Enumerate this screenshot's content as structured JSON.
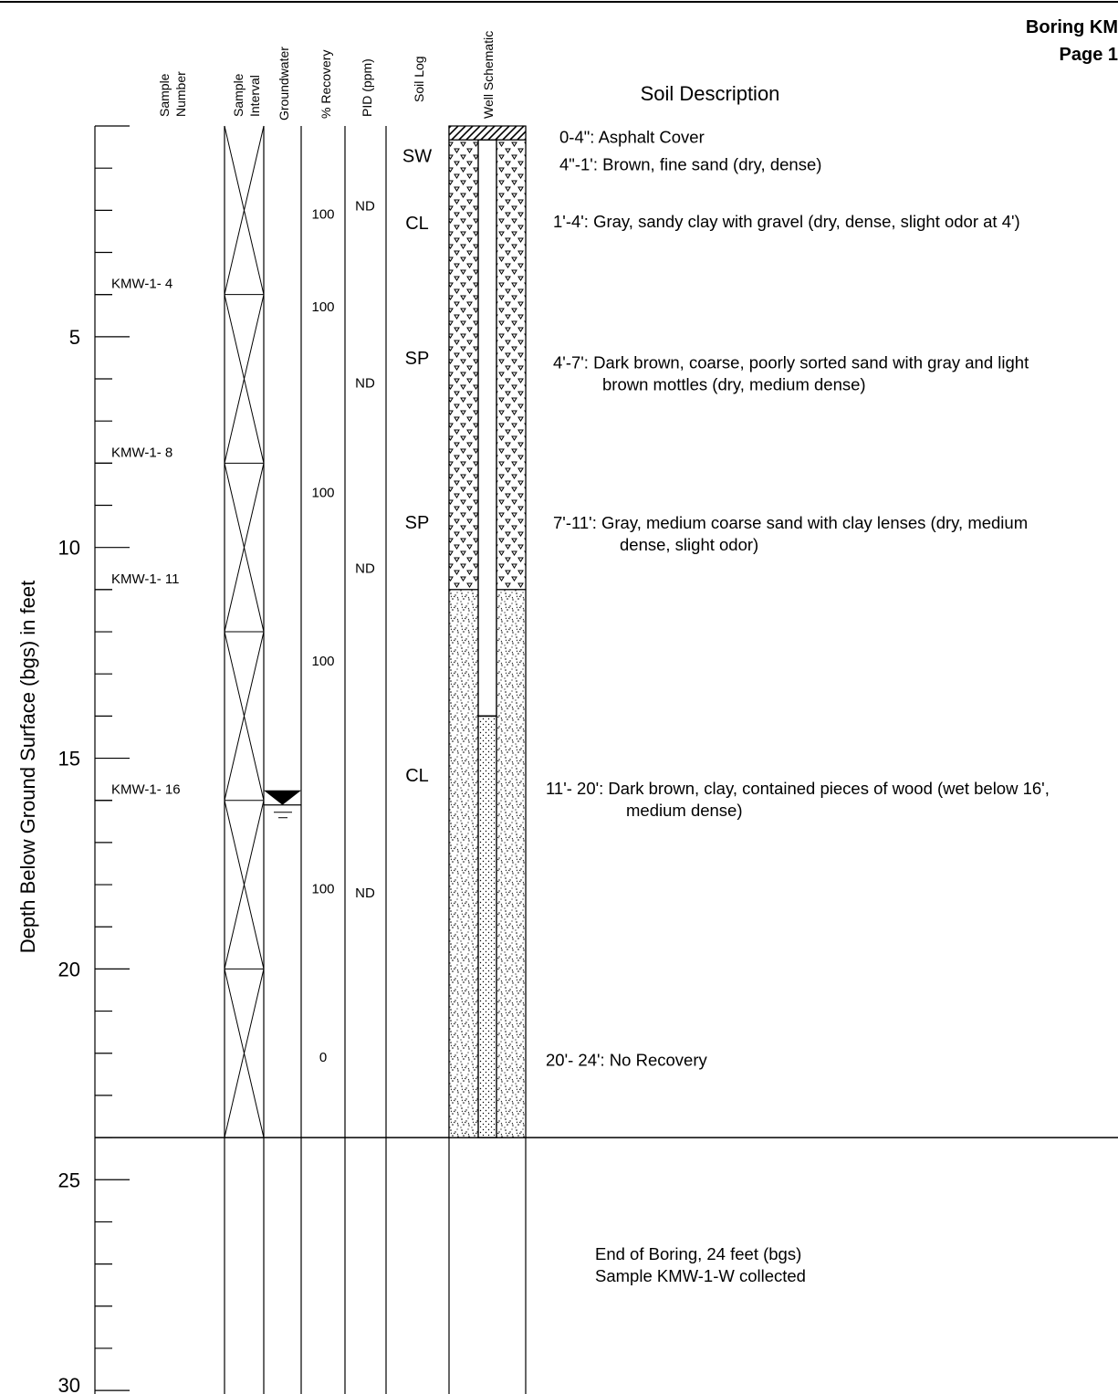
{
  "title": {
    "line1": "Boring KM",
    "line2": "Page 1"
  },
  "headers": {
    "sample_number": [
      "Sample",
      "Number"
    ],
    "sample_interval": [
      "Sample",
      "Interval"
    ],
    "groundwater": "Groundwater",
    "recovery": "% Recovery",
    "pid": "PID (ppm)",
    "soil_log": "Soil Log",
    "well_schematic": "Well Schematic",
    "soil_description": "Soil Description"
  },
  "axis": {
    "label": "Depth Below Ground Surface (bgs) in feet",
    "range": [
      0,
      30
    ],
    "tick_labels": [
      "5",
      "10",
      "15",
      "20",
      "25",
      "30"
    ],
    "tick_values": [
      5,
      10,
      15,
      20,
      25,
      30
    ]
  },
  "samples": [
    {
      "label": "KMW-1- 4",
      "depth": 4
    },
    {
      "label": "KMW-1- 8",
      "depth": 8
    },
    {
      "label": "KMW-1- 11",
      "depth": 11
    },
    {
      "label": "KMW-1- 16",
      "depth": 16
    }
  ],
  "sample_intervals": [
    0,
    4,
    8,
    12,
    16,
    20,
    24
  ],
  "groundwater_depth": 16,
  "recovery": [
    {
      "value": "100",
      "depth": 2.2
    },
    {
      "value": "100",
      "depth": 4.4
    },
    {
      "value": "100",
      "depth": 8.8
    },
    {
      "value": "100",
      "depth": 12.8
    },
    {
      "value": "100",
      "depth": 18.2
    },
    {
      "value": "0",
      "depth": 22.2
    }
  ],
  "pid": [
    {
      "value": "ND",
      "depth": 2.0
    },
    {
      "value": "ND",
      "depth": 6.2
    },
    {
      "value": "ND",
      "depth": 10.6
    },
    {
      "value": "ND",
      "depth": 18.3
    }
  ],
  "soil_log": [
    {
      "code": "SW",
      "depth": 0.7
    },
    {
      "code": "CL",
      "depth": 2.3
    },
    {
      "code": "SP",
      "depth": 5.5
    },
    {
      "code": "SP",
      "depth": 9.4
    },
    {
      "code": "CL",
      "depth": 15.4
    }
  ],
  "well": {
    "asphalt_bottom": 0.33,
    "grout_bottom": 11,
    "casing_screen_transition": 14,
    "boring_bottom": 24
  },
  "descriptions": [
    {
      "lines": [
        "0-4\": Asphalt Cover"
      ],
      "depth": 0.1
    },
    {
      "lines": [
        "4\"-1': Brown, fine sand (dry, dense)"
      ],
      "depth": 0.75
    },
    {
      "lines": [
        "1'-4': Gray, sandy clay with gravel  (dry, dense, slight odor at 4')"
      ],
      "depth": 2.1
    },
    {
      "lines": [
        "4'-7': Dark brown, coarse, poorly sorted sand with gray and light",
        "brown mottles (dry, medium dense)"
      ],
      "depth": 5.45
    },
    {
      "lines": [
        "7'-11': Gray, medium coarse sand with clay lenses (dry, medium",
        "dense, slight odor)"
      ],
      "depth": 9.25
    },
    {
      "lines": [
        "11'- 20': Dark brown, clay, contained pieces of wood (wet below 16',",
        "medium dense)"
      ],
      "depth": 15.55
    },
    {
      "lines": [
        "20'- 24': No Recovery"
      ],
      "depth": 22.0
    },
    {
      "lines": [
        "End of Boring, 24 feet (bgs)",
        "Sample KMW-1-W collected"
      ],
      "depth": 26.6
    }
  ]
}
